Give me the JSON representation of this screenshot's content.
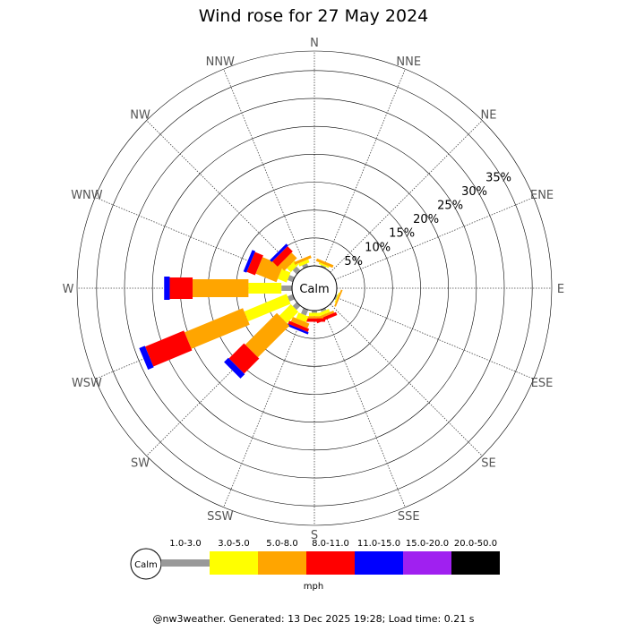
{
  "chart_data": {
    "type": "wind-rose",
    "title": "Wind rose for 27 May 2024",
    "directions": [
      "N",
      "NNE",
      "NE",
      "ENE",
      "E",
      "ESE",
      "SE",
      "SSE",
      "S",
      "SSW",
      "SW",
      "WSW",
      "W",
      "WNW",
      "NW",
      "NNW"
    ],
    "ring_ticks": [
      "5%",
      "10%",
      "15%",
      "20%",
      "25%",
      "30%",
      "35%"
    ],
    "ring_values": [
      5,
      10,
      15,
      20,
      25,
      30,
      35
    ],
    "max_percent": 38.5,
    "calm_label": "Calm",
    "unit": "mph",
    "bins": [
      {
        "label": "1.0-3.0",
        "color": "#999999"
      },
      {
        "label": "3.0-5.0",
        "color": "#ffff00"
      },
      {
        "label": "5.0-8.0",
        "color": "#ffa500"
      },
      {
        "label": "8.0-11.0",
        "color": "#ff0000"
      },
      {
        "label": "11.0-15.0",
        "color": "#0000ff"
      },
      {
        "label": "15.0-20.0",
        "color": "#a020f0"
      },
      {
        "label": "20.0-50.0",
        "color": "#000000"
      }
    ],
    "series": [
      {
        "direction": "N",
        "values": [
          0,
          0,
          0,
          0,
          0,
          0,
          0
        ]
      },
      {
        "direction": "NNE",
        "values": [
          0.3,
          0.3,
          0.5,
          0,
          0,
          0,
          0
        ]
      },
      {
        "direction": "NE",
        "values": [
          0,
          0,
          0,
          0,
          0,
          0,
          0
        ]
      },
      {
        "direction": "ENE",
        "values": [
          0,
          0,
          0,
          0,
          0,
          0,
          0
        ]
      },
      {
        "direction": "E",
        "values": [
          0,
          0,
          0,
          0,
          0,
          0,
          0
        ]
      },
      {
        "direction": "ESE",
        "values": [
          0.3,
          0.2,
          0.3,
          0,
          0,
          0,
          0
        ]
      },
      {
        "direction": "SE",
        "values": [
          0,
          0,
          0,
          0,
          0,
          0,
          0
        ]
      },
      {
        "direction": "SSE",
        "values": [
          0.4,
          0.6,
          0.4,
          0.6,
          0,
          0,
          0
        ]
      },
      {
        "direction": "S",
        "values": [
          0.4,
          0.6,
          0.4,
          0.6,
          0,
          0,
          0
        ]
      },
      {
        "direction": "SSW",
        "values": [
          1.1,
          1.1,
          0.9,
          0.6,
          0.4,
          0,
          0
        ]
      },
      {
        "direction": "SW",
        "values": [
          1.0,
          2.9,
          8.0,
          3.8,
          1.1,
          0,
          0
        ]
      },
      {
        "direction": "WSW",
        "values": [
          1.0,
          8.2,
          11.3,
          7.5,
          1.1,
          0,
          0
        ]
      },
      {
        "direction": "W",
        "values": [
          1.9,
          5.9,
          10.0,
          4.1,
          1.0,
          0,
          0
        ]
      },
      {
        "direction": "WNW",
        "values": [
          1.0,
          1.7,
          4.0,
          1.6,
          0.6,
          0,
          0
        ]
      },
      {
        "direction": "NW",
        "values": [
          1.0,
          1.0,
          1.4,
          1.3,
          0.5,
          0,
          0
        ]
      },
      {
        "direction": "NNW",
        "values": [
          0.6,
          0.6,
          0.5,
          0,
          0,
          0,
          0
        ]
      }
    ]
  },
  "footer": "@nw3weather.  Generated: 13 Dec 2025 19:28; Load time: 0.21 s"
}
